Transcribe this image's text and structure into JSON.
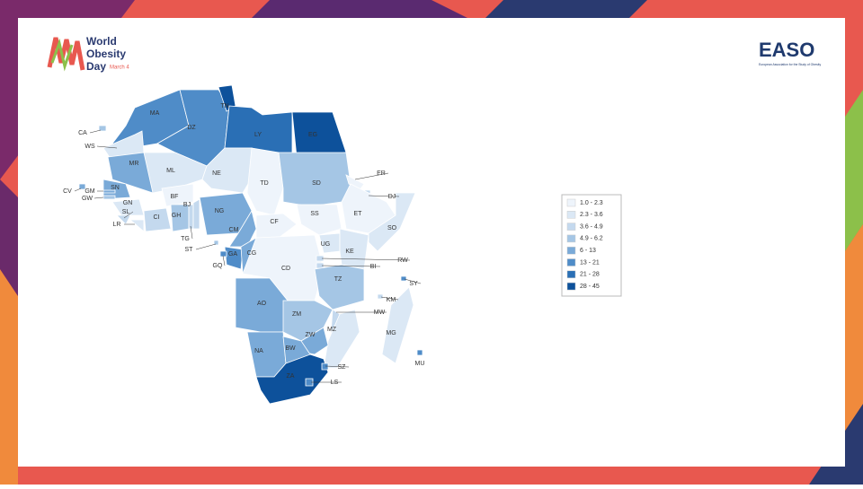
{
  "header": {
    "logo": {
      "line1": "World",
      "line2": "Obesity",
      "line3": "Day",
      "date": "March 4"
    },
    "partner": {
      "name": "EASO",
      "subtitle": "European Association for the Study of Obesity"
    }
  },
  "map": {
    "countries": [
      {
        "code": "MA",
        "color": "#4f8cc8"
      },
      {
        "code": "WS",
        "color": "#dbe8f5"
      },
      {
        "code": "DZ",
        "color": "#4f8cc8"
      },
      {
        "code": "TN",
        "color": "#0d519b"
      },
      {
        "code": "LY",
        "color": "#2a6fb5"
      },
      {
        "code": "EG",
        "color": "#0d519b"
      },
      {
        "code": "MR",
        "color": "#7aaad8"
      },
      {
        "code": "ML",
        "color": "#dbe8f5"
      },
      {
        "code": "NE",
        "color": "#dbe8f5"
      },
      {
        "code": "TD",
        "color": "#eef4fb"
      },
      {
        "code": "SD",
        "color": "#a5c6e5"
      },
      {
        "code": "ER",
        "color": "#eef4fb"
      },
      {
        "code": "DJ",
        "color": "#c4d9ee"
      },
      {
        "code": "ET",
        "color": "#eef4fb"
      },
      {
        "code": "SO",
        "color": "#dbe8f5"
      },
      {
        "code": "SN",
        "color": "#7aaad8"
      },
      {
        "code": "GM",
        "color": "#7aaad8"
      },
      {
        "code": "GW",
        "color": "#a5c6e5"
      },
      {
        "code": "GN",
        "color": "#dbe8f5"
      },
      {
        "code": "SL",
        "color": "#c4d9ee"
      },
      {
        "code": "LR",
        "color": "#dbe8f5"
      },
      {
        "code": "CI",
        "color": "#c4d9ee"
      },
      {
        "code": "BF",
        "color": "#eef4fb"
      },
      {
        "code": "GH",
        "color": "#a5c6e5"
      },
      {
        "code": "TG",
        "color": "#c4d9ee"
      },
      {
        "code": "BJ",
        "color": "#c4d9ee"
      },
      {
        "code": "NG",
        "color": "#7aaad8"
      },
      {
        "code": "CM",
        "color": "#7aaad8"
      },
      {
        "code": "CF",
        "color": "#eef4fb"
      },
      {
        "code": "SS",
        "color": "#eef4fb"
      },
      {
        "code": "GA",
        "color": "#4f8cc8"
      },
      {
        "code": "CG",
        "color": "#7aaad8"
      },
      {
        "code": "GQ",
        "color": "#4f8cc8"
      },
      {
        "code": "CD",
        "color": "#eef4fb"
      },
      {
        "code": "UG",
        "color": "#dbe8f5"
      },
      {
        "code": "KE",
        "color": "#dbe8f5"
      },
      {
        "code": "RW",
        "color": "#c4d9ee"
      },
      {
        "code": "BI",
        "color": "#c4d9ee"
      },
      {
        "code": "TZ",
        "color": "#a5c6e5"
      },
      {
        "code": "AO",
        "color": "#7aaad8"
      },
      {
        "code": "ZM",
        "color": "#a5c6e5"
      },
      {
        "code": "MW",
        "color": "#c4d9ee"
      },
      {
        "code": "MZ",
        "color": "#dbe8f5"
      },
      {
        "code": "ZW",
        "color": "#7aaad8"
      },
      {
        "code": "NA",
        "color": "#7aaad8"
      },
      {
        "code": "BW",
        "color": "#7aaad8"
      },
      {
        "code": "ZA",
        "color": "#0d519b"
      },
      {
        "code": "SZ",
        "color": "#4f8cc8"
      },
      {
        "code": "LS",
        "color": "#4f8cc8"
      },
      {
        "code": "MG",
        "color": "#dbe8f5"
      },
      {
        "code": "KM",
        "color": "#c4d9ee"
      },
      {
        "code": "SY",
        "color": "#4f8cc8"
      },
      {
        "code": "MU",
        "color": "#4f8cc8"
      },
      {
        "code": "CV",
        "color": "#7aaad8"
      },
      {
        "code": "CA",
        "color": "#a5c6e5"
      },
      {
        "code": "ST",
        "color": "#a5c6e5"
      }
    ],
    "legend": [
      {
        "label": "1.0 - 2.3",
        "color": "#eef4fb"
      },
      {
        "label": "2.3 - 3.6",
        "color": "#dbe8f5"
      },
      {
        "label": "3.6 - 4.9",
        "color": "#c4d9ee"
      },
      {
        "label": "4.9 - 6.2",
        "color": "#a5c6e5"
      },
      {
        "label": "6 - 13",
        "color": "#7aaad8"
      },
      {
        "label": "13 - 21",
        "color": "#4f8cc8"
      },
      {
        "label": "21 - 28",
        "color": "#2a6fb5"
      },
      {
        "label": "28 - 45",
        "color": "#0d519b"
      }
    ]
  }
}
